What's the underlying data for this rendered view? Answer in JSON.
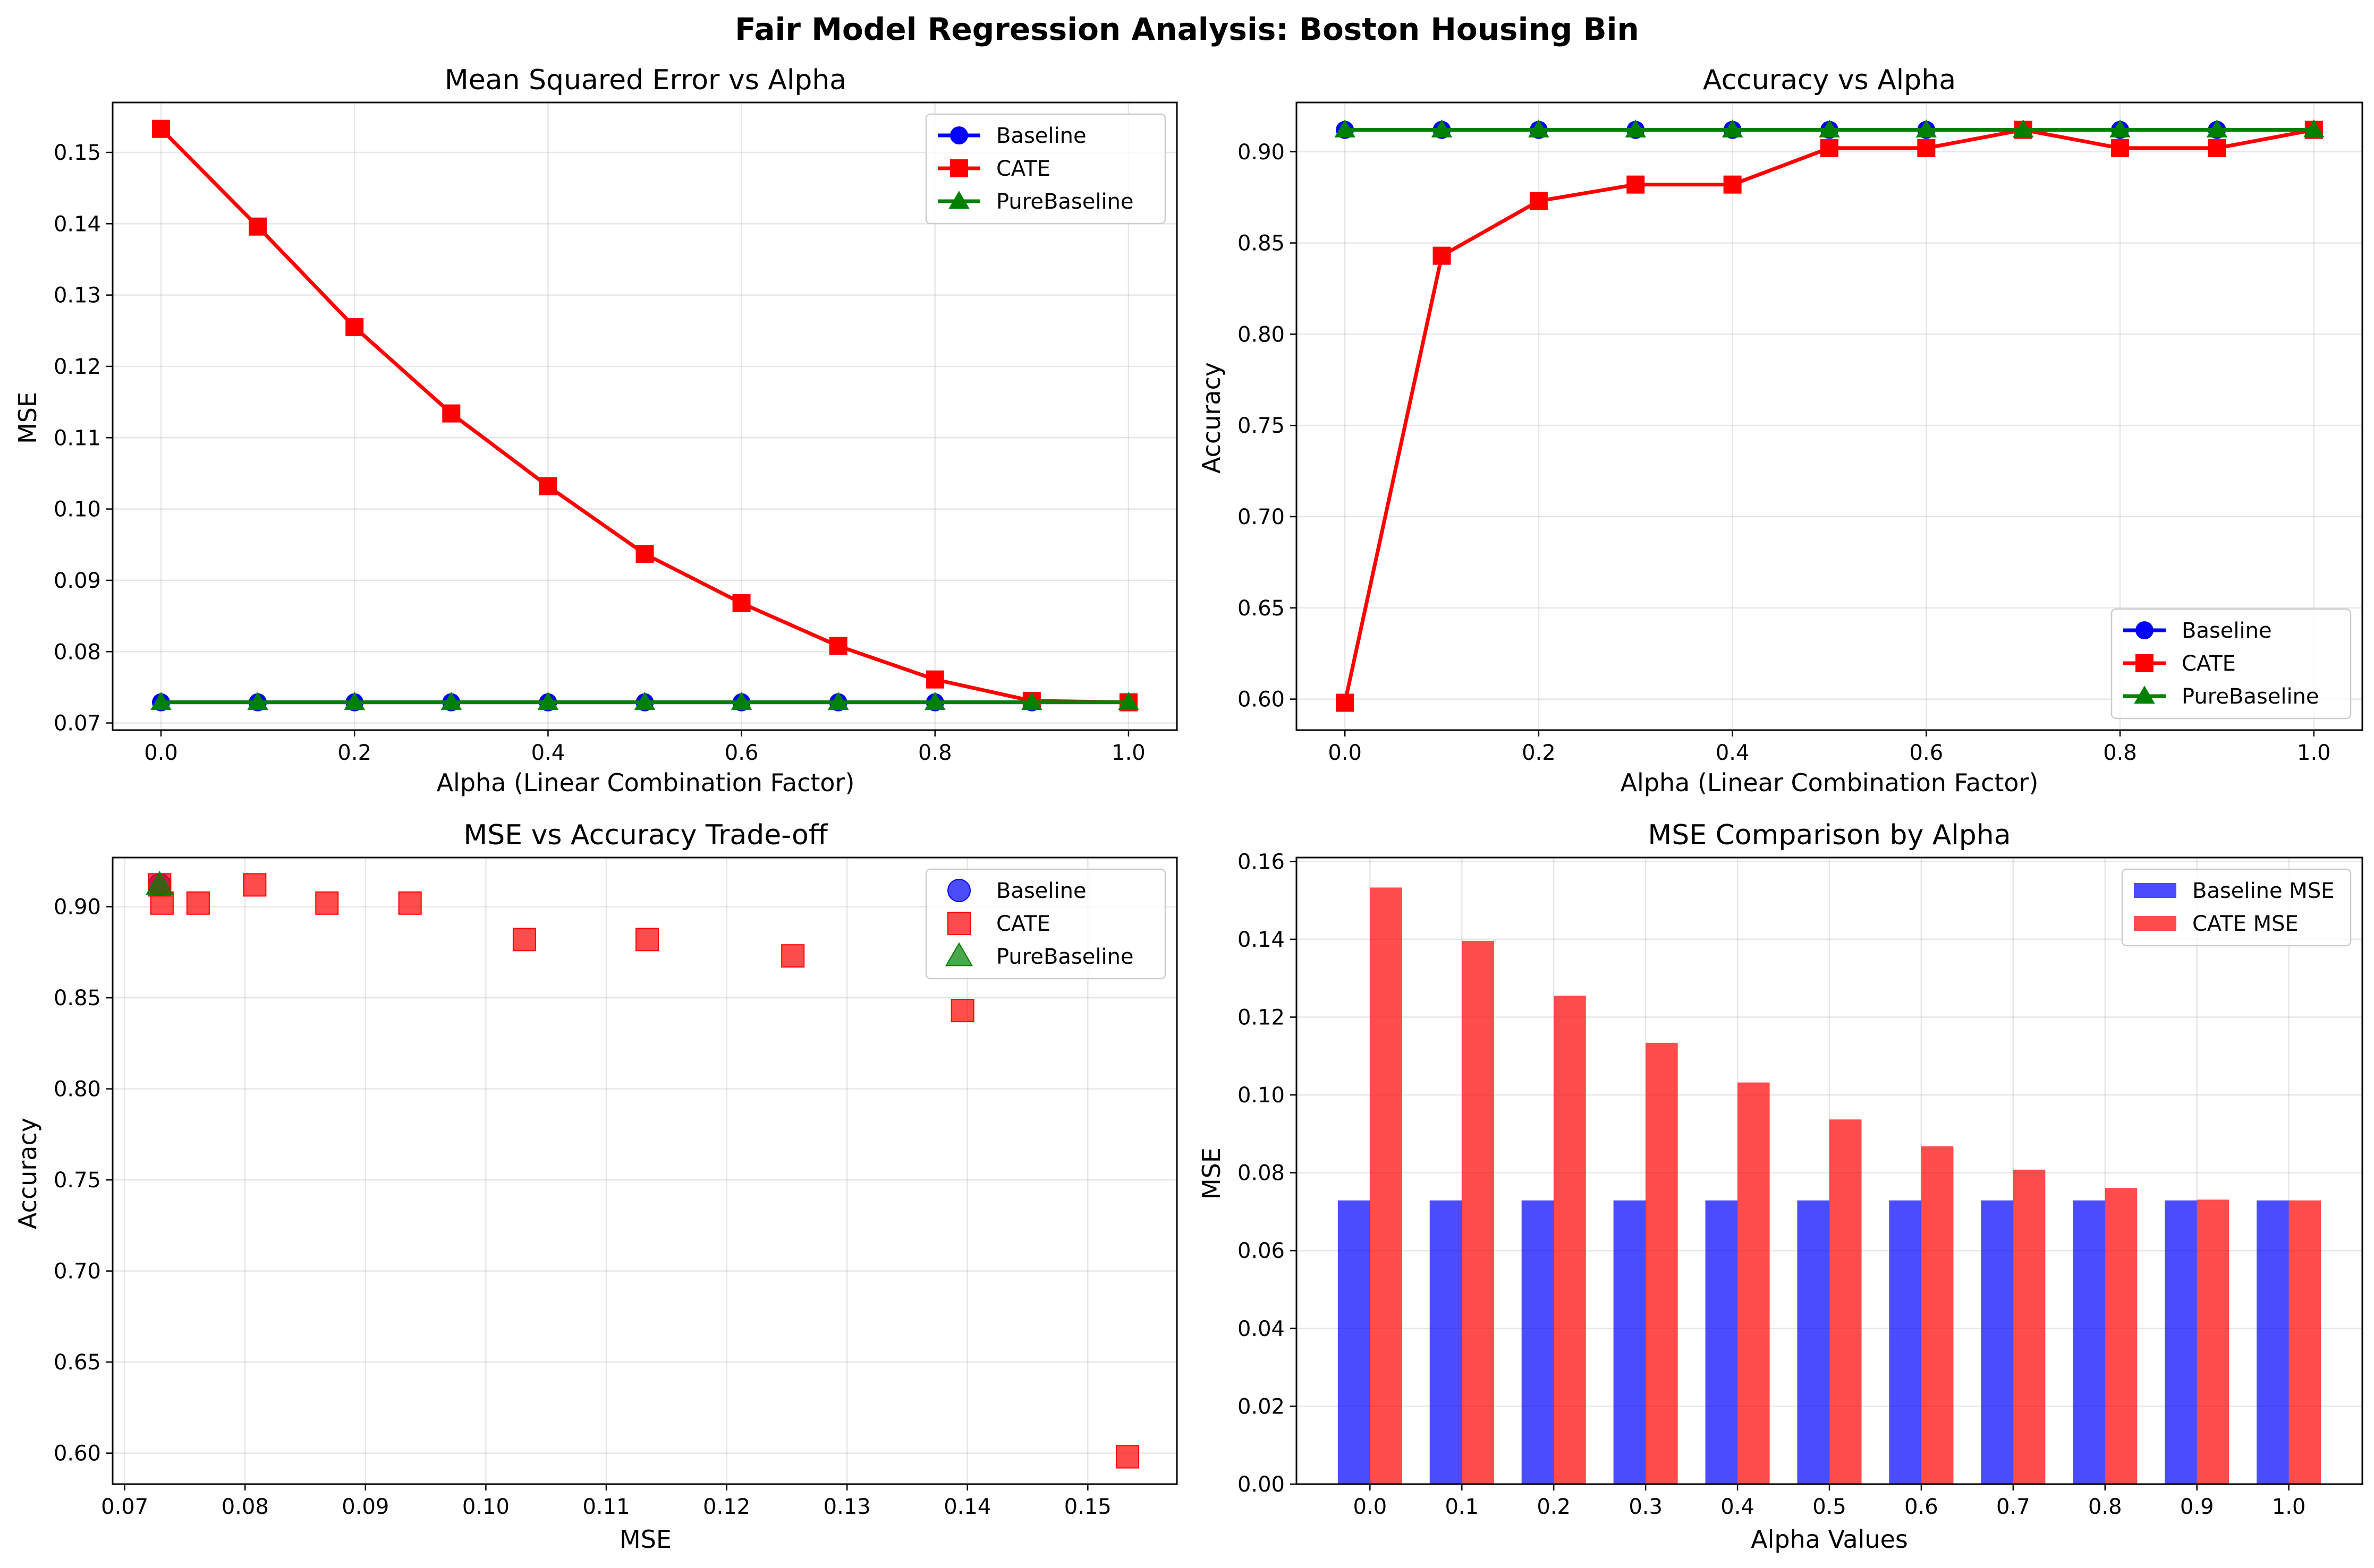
{
  "suptitle": "Fair Model Regression Analysis: Boston Housing Bin",
  "colors": {
    "baseline": "#0000ff",
    "cate": "#ff0000",
    "pure": "#008000"
  },
  "chart_data": [
    {
      "type": "line",
      "title": "Mean Squared Error vs Alpha",
      "xlabel": "Alpha (Linear Combination Factor)",
      "ylabel": "MSE",
      "x": [
        0.0,
        0.1,
        0.2,
        0.3,
        0.4,
        0.5,
        0.6,
        0.7,
        0.8,
        0.9,
        1.0
      ],
      "series": [
        {
          "name": "Baseline",
          "marker": "circle",
          "values": [
            0.0729,
            0.0729,
            0.0729,
            0.0729,
            0.0729,
            0.0729,
            0.0729,
            0.0729,
            0.0729,
            0.0729,
            0.0729
          ]
        },
        {
          "name": "CATE",
          "marker": "square",
          "values": [
            0.1533,
            0.1396,
            0.1255,
            0.1134,
            0.1032,
            0.0937,
            0.0868,
            0.0808,
            0.0761,
            0.0731,
            0.0729
          ]
        },
        {
          "name": "PureBaseline",
          "marker": "triangle",
          "values": [
            0.0729,
            0.0729,
            0.0729,
            0.0729,
            0.0729,
            0.0729,
            0.0729,
            0.0729,
            0.0729,
            0.0729,
            0.0729
          ]
        }
      ],
      "xlim": [
        -0.05,
        1.05
      ],
      "ylim": [
        0.069,
        0.157
      ],
      "xticks": [
        0.0,
        0.2,
        0.4,
        0.6,
        0.8,
        1.0
      ],
      "xtick_labels": [
        "0.0",
        "0.2",
        "0.4",
        "0.6",
        "0.8",
        "1.0"
      ],
      "yticks": [
        0.07,
        0.08,
        0.09,
        0.1,
        0.11,
        0.12,
        0.13,
        0.14,
        0.15
      ],
      "ytick_labels": [
        "0.07",
        "0.08",
        "0.09",
        "0.10",
        "0.11",
        "0.12",
        "0.13",
        "0.14",
        "0.15"
      ],
      "grid": true,
      "legend_position": "upper-right"
    },
    {
      "type": "line",
      "title": "Accuracy vs Alpha",
      "xlabel": "Alpha (Linear Combination Factor)",
      "ylabel": "Accuracy",
      "x": [
        0.0,
        0.1,
        0.2,
        0.3,
        0.4,
        0.5,
        0.6,
        0.7,
        0.8,
        0.9,
        1.0
      ],
      "series": [
        {
          "name": "Baseline",
          "marker": "circle",
          "values": [
            0.912,
            0.912,
            0.912,
            0.912,
            0.912,
            0.912,
            0.912,
            0.912,
            0.912,
            0.912,
            0.912
          ]
        },
        {
          "name": "CATE",
          "marker": "square",
          "values": [
            0.598,
            0.843,
            0.873,
            0.882,
            0.882,
            0.902,
            0.902,
            0.912,
            0.902,
            0.902,
            0.912
          ]
        },
        {
          "name": "PureBaseline",
          "marker": "triangle",
          "values": [
            0.912,
            0.912,
            0.912,
            0.912,
            0.912,
            0.912,
            0.912,
            0.912,
            0.912,
            0.912,
            0.912
          ]
        }
      ],
      "xlim": [
        -0.05,
        1.05
      ],
      "ylim": [
        0.583,
        0.927
      ],
      "xticks": [
        0.0,
        0.2,
        0.4,
        0.6,
        0.8,
        1.0
      ],
      "xtick_labels": [
        "0.0",
        "0.2",
        "0.4",
        "0.6",
        "0.8",
        "1.0"
      ],
      "yticks": [
        0.6,
        0.65,
        0.7,
        0.75,
        0.8,
        0.85,
        0.9
      ],
      "ytick_labels": [
        "0.60",
        "0.65",
        "0.70",
        "0.75",
        "0.80",
        "0.85",
        "0.90"
      ],
      "grid": true,
      "legend_position": "lower-right"
    },
    {
      "type": "scatter",
      "title": "MSE vs Accuracy Trade-off",
      "xlabel": "MSE",
      "ylabel": "Accuracy",
      "series": [
        {
          "name": "Baseline",
          "marker": "circle",
          "x": [
            0.0729
          ],
          "y": [
            0.912
          ]
        },
        {
          "name": "CATE",
          "marker": "square",
          "x": [
            0.1533,
            0.1396,
            0.1255,
            0.1134,
            0.1032,
            0.0937,
            0.0868,
            0.0808,
            0.0761,
            0.0731,
            0.0729
          ],
          "y": [
            0.598,
            0.843,
            0.873,
            0.882,
            0.882,
            0.902,
            0.902,
            0.912,
            0.902,
            0.902,
            0.912
          ]
        },
        {
          "name": "PureBaseline",
          "marker": "triangle",
          "x": [
            0.0729
          ],
          "y": [
            0.912
          ]
        }
      ],
      "xlim": [
        0.069,
        0.1574
      ],
      "ylim": [
        0.583,
        0.927
      ],
      "xticks": [
        0.07,
        0.08,
        0.09,
        0.1,
        0.11,
        0.12,
        0.13,
        0.14,
        0.15
      ],
      "xtick_labels": [
        "0.07",
        "0.08",
        "0.09",
        "0.10",
        "0.11",
        "0.12",
        "0.13",
        "0.14",
        "0.15"
      ],
      "yticks": [
        0.6,
        0.65,
        0.7,
        0.75,
        0.8,
        0.85,
        0.9
      ],
      "ytick_labels": [
        "0.60",
        "0.65",
        "0.70",
        "0.75",
        "0.80",
        "0.85",
        "0.90"
      ],
      "grid": true,
      "legend_position": "upper-right"
    },
    {
      "type": "bar",
      "title": "MSE Comparison by Alpha",
      "xlabel": "Alpha Values",
      "ylabel": "MSE",
      "categories": [
        "0.0",
        "0.1",
        "0.2",
        "0.3",
        "0.4",
        "0.5",
        "0.6",
        "0.7",
        "0.8",
        "0.9",
        "1.0"
      ],
      "series": [
        {
          "name": "Baseline MSE",
          "values": [
            0.0729,
            0.0729,
            0.0729,
            0.0729,
            0.0729,
            0.0729,
            0.0729,
            0.0729,
            0.0729,
            0.0729,
            0.0729
          ]
        },
        {
          "name": "CATE MSE",
          "values": [
            0.1533,
            0.1396,
            0.1255,
            0.1134,
            0.1032,
            0.0937,
            0.0868,
            0.0808,
            0.0761,
            0.0731,
            0.0729
          ]
        }
      ],
      "ylim": [
        0,
        0.161
      ],
      "yticks": [
        0.0,
        0.02,
        0.04,
        0.06,
        0.08,
        0.1,
        0.12,
        0.14,
        0.16
      ],
      "ytick_labels": [
        "0.00",
        "0.02",
        "0.04",
        "0.06",
        "0.08",
        "0.10",
        "0.12",
        "0.14",
        "0.16"
      ],
      "grid": true,
      "legend_position": "upper-right"
    }
  ]
}
